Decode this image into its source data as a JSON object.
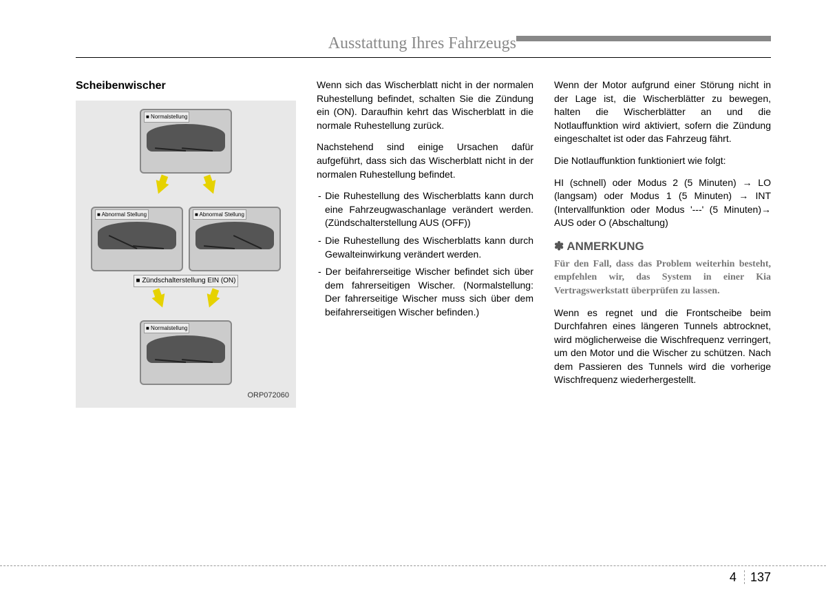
{
  "header": {
    "title": "Ausstattung Ihres Fahrzeugs"
  },
  "section_title": "Scheibenwischer",
  "figure": {
    "normal_top": "■ Normalstellung",
    "abnormal_left": "■ Abnormal Stellung",
    "abnormal_right": "■ Abnormal Stellung",
    "ignition_on": "■ Zündschalterstellung EIN (ON)",
    "normal_bottom": "■ Normalstellung",
    "code": "ORP072060"
  },
  "col2": {
    "p1": "Wenn sich das Wischerblatt nicht in der normalen Ruhestellung befindet, schalten Sie die Zündung ein (ON). Daraufhin kehrt das Wischerblatt in die normale Ruhestellung zurück.",
    "p2": "Nachstehend sind einige Ursachen dafür aufgeführt, dass sich das Wischerblatt nicht in der normalen Ruhestellung befindet.",
    "li1": "Die Ruhestellung des Wischerblatts kann durch eine Fahrzeugwaschanlage verändert werden. (Zündschalterstellung AUS (OFF))",
    "li2": "Die Ruhestellung des Wischerblatts kann durch Gewalteinwirkung verändert werden.",
    "li3": "Der beifahrerseitige Wischer befindet sich über dem fahrerseitigen Wischer. (Normalstellung: Der fahrerseitige Wischer muss sich über dem beifahrerseitigen Wischer befinden.)"
  },
  "col3": {
    "p1": "Wenn der Motor aufgrund einer Störung nicht in der Lage ist, die Wischerblätter zu bewegen, halten die Wischerblätter an und die Notlauffunktion wird aktiviert, sofern die Zündung eingeschaltet ist oder das Fahrzeug fährt.",
    "p2": "Die Notlauffunktion funktioniert wie folgt:",
    "p3": "HI (schnell) oder Modus 2 (5 Minuten) → LO (langsam) oder Modus 1 (5 Minuten) → INT (Intervallfunktion oder Modus '---' (5 Minuten)→ AUS oder O (Abschaltung)",
    "note_title": "✽ ANMERKUNG",
    "note_text": "Für den Fall, dass das Problem weiterhin besteht, empfehlen wir, das System in einer Kia Vertragswerkstatt überprüfen zu lassen.",
    "p4": "Wenn es regnet und die Frontscheibe beim Durchfahren eines längeren Tunnels abtrocknet, wird möglicherweise die Wischfrequenz verringert, um den Motor und die Wischer zu schützen. Nach dem Passieren des Tunnels wird die vorherige Wischfrequenz wiederhergestellt."
  },
  "footer": {
    "chapter": "4",
    "page": "137"
  }
}
